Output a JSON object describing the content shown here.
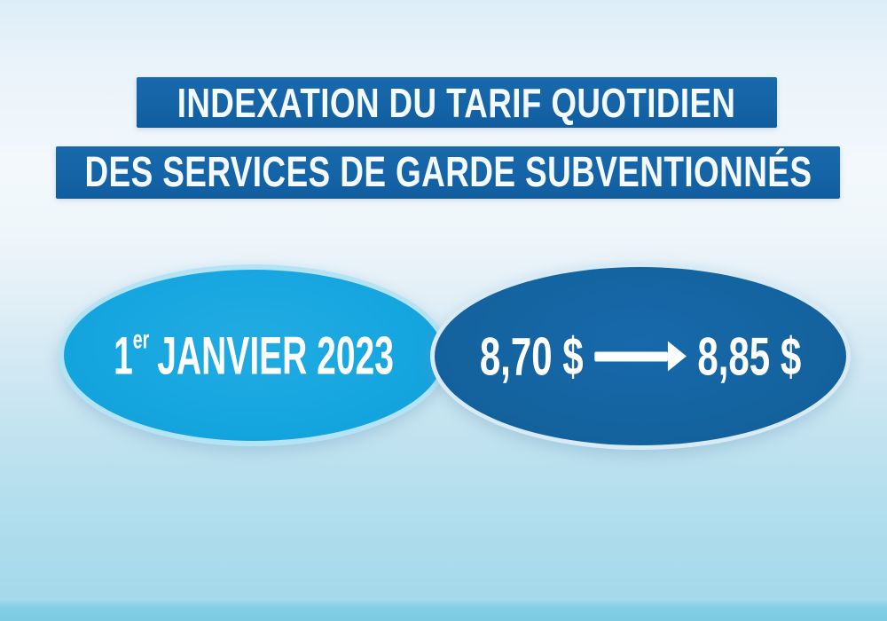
{
  "titles": {
    "line1": "INDEXATION DU TARIF QUOTIDIEN",
    "line2": "DES SERVICES DE GARDE SUBVENTIONNÉS"
  },
  "date_badge": {
    "day": "1",
    "ordinal": "er",
    "rest": "JANVIER 2023"
  },
  "price_badge": {
    "old_price": "8,70 $",
    "new_price": "8,85 $",
    "arrow_icon": "arrow-right-icon"
  },
  "colors": {
    "banner_blue": "#1464a7",
    "banner_text": "#f4fafe",
    "light_ellipse_fill": "#14a5de",
    "light_ellipse_border": "#b5e3f6",
    "dark_ellipse_fill": "#14639f",
    "dark_ellipse_border": "#d8eaf5",
    "text_white": "#ffffff",
    "background_top": "#ddedf7",
    "background_middle": "#f2f8fc",
    "background_lower": "#abdcec",
    "background_bottom_band": "#7dcae3"
  }
}
